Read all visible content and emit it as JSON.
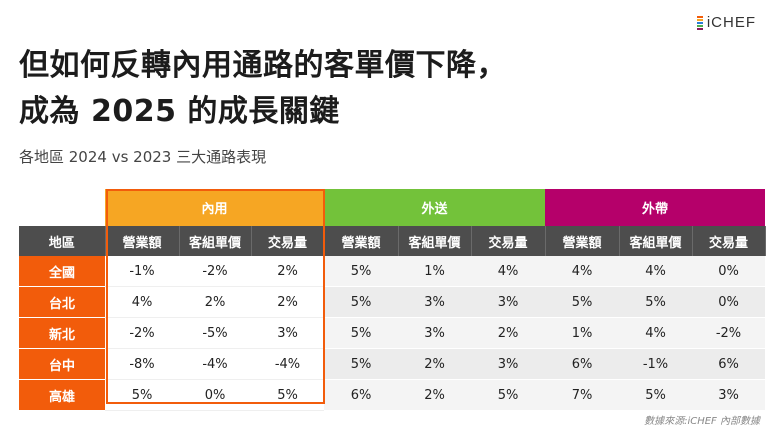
{
  "brand": {
    "logo_text": "iCHEF",
    "logo_colors": [
      "#f25c0b",
      "#f6a623",
      "#2b7bd6",
      "#4caf50",
      "#8b1a5c"
    ]
  },
  "title_line1": "但如何反轉內用通路的客單價下降，",
  "title_line2": "成為 2025 的成長關鍵",
  "subtitle": "各地區 2024 vs 2023 三大通路表現",
  "table": {
    "groups": [
      {
        "label": "內用",
        "color": "#f6a623"
      },
      {
        "label": "外送",
        "color": "#73c23a"
      },
      {
        "label": "外帶",
        "color": "#b5006a"
      }
    ],
    "region_header": "地區",
    "metric_headers": [
      "營業額",
      "客組單價",
      "交易量",
      "營業額",
      "客組單價",
      "交易量",
      "營業額",
      "客組單價",
      "交易量"
    ],
    "rows": [
      {
        "region": "全國",
        "values": [
          "-1%",
          "-2%",
          "2%",
          "5%",
          "1%",
          "4%",
          "4%",
          "4%",
          "0%"
        ]
      },
      {
        "region": "台北",
        "values": [
          "4%",
          "2%",
          "2%",
          "5%",
          "3%",
          "3%",
          "5%",
          "5%",
          "0%"
        ]
      },
      {
        "region": "新北",
        "values": [
          "-2%",
          "-5%",
          "3%",
          "5%",
          "3%",
          "2%",
          "1%",
          "4%",
          "-2%"
        ]
      },
      {
        "region": "台中",
        "values": [
          "-8%",
          "-4%",
          "-4%",
          "5%",
          "2%",
          "3%",
          "6%",
          "-1%",
          "6%"
        ]
      },
      {
        "region": "高雄",
        "values": [
          "5%",
          "0%",
          "5%",
          "6%",
          "2%",
          "5%",
          "7%",
          "5%",
          "3%"
        ]
      }
    ],
    "highlight_color": "#f25c0b",
    "header_bg": "#4d4d4d"
  },
  "source": "數據來源:iCHEF 內部數據"
}
